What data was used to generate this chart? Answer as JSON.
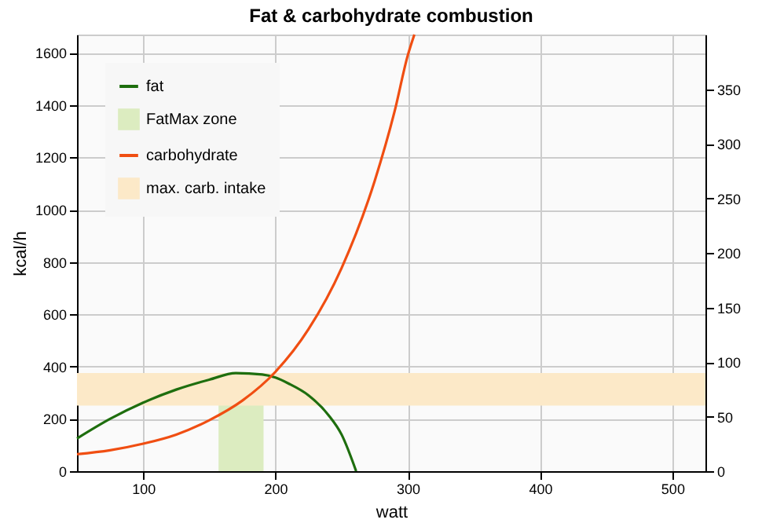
{
  "chart_data": {
    "type": "line",
    "title": "Fat & carbohydrate combustion",
    "xlabel": "watt",
    "ylabel": "kcal/h",
    "series": [
      {
        "name": "fat",
        "color": "#1e6e0e",
        "x": [
          50,
          75,
          100,
          125,
          150,
          170,
          190,
          200,
          210,
          225,
          240,
          250,
          261
        ],
        "values": [
          125,
          200,
          262,
          312,
          350,
          375,
          370,
          358,
          335,
          290,
          215,
          140,
          0
        ]
      },
      {
        "name": "carbohydrate",
        "color": "#f04e12",
        "x": [
          50,
          75,
          100,
          125,
          150,
          175,
          200,
          225,
          250,
          275,
          290,
          300,
          305
        ],
        "values": [
          65,
          80,
          105,
          140,
          195,
          270,
          380,
          543,
          777,
          1110,
          1375,
          1590,
          1670
        ]
      }
    ],
    "bands": [
      {
        "axis": "x",
        "from": 157,
        "to": 191,
        "label": "FatMax zone",
        "color": "#dcecc0"
      },
      {
        "axis": "y2",
        "from": 60,
        "to": 90,
        "label": "max. carb. intake",
        "color": "#fce9c8"
      }
    ],
    "xlim": [
      50,
      525
    ],
    "xticks": [
      100,
      200,
      300,
      400,
      500
    ],
    "ylim": [
      0,
      1670
    ],
    "yticks": [
      0,
      200,
      400,
      600,
      800,
      1000,
      1200,
      1400,
      1600
    ],
    "y2lim": [
      0,
      400
    ],
    "y2ticks": [
      0,
      50,
      100,
      150,
      200,
      250,
      300,
      350
    ],
    "grid": true,
    "legend": "top left"
  }
}
